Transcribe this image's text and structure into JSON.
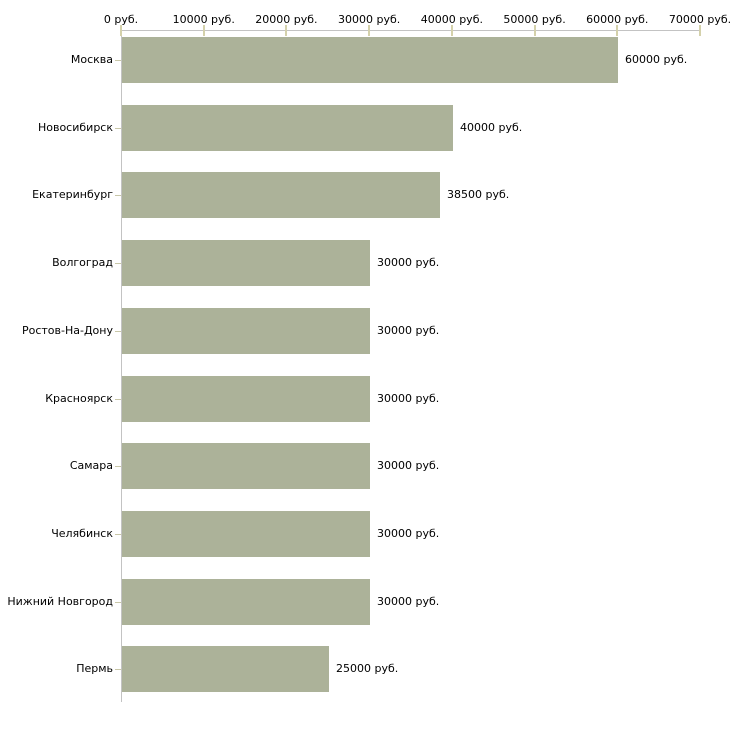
{
  "chart_data": {
    "type": "bar",
    "orientation": "horizontal",
    "title": "",
    "xlabel": "",
    "ylabel": "",
    "grid": false,
    "legend": false,
    "categories": [
      "Москва",
      "Новосибирск",
      "Екатеринбург",
      "Волгоград",
      "Ростов-На-Дону",
      "Красноярск",
      "Самара",
      "Челябинск",
      "Нижний Новгород",
      "Пермь"
    ],
    "values": [
      60000,
      40000,
      38500,
      30000,
      30000,
      30000,
      30000,
      30000,
      30000,
      25000
    ],
    "value_labels": [
      "60000 руб.",
      "40000 руб.",
      "38500 руб.",
      "30000 руб.",
      "30000 руб.",
      "30000 руб.",
      "30000 руб.",
      "30000 руб.",
      "30000 руб.",
      "25000 руб."
    ],
    "x_axis": {
      "position": "top",
      "min": 0,
      "max": 70000,
      "ticks": [
        0,
        10000,
        20000,
        30000,
        40000,
        50000,
        60000,
        70000
      ],
      "tick_labels": [
        "0 руб.",
        "10000 руб.",
        "20000 руб.",
        "30000 руб.",
        "40000 руб.",
        "50000 руб.",
        "60000 руб.",
        "70000 руб."
      ]
    },
    "colors": {
      "bar": "#acb299",
      "axis_line": "#c3c3c3",
      "x_tick": "#d4d1ab",
      "y_tick": "#c9c7a8",
      "text": "#000000",
      "background": "#ffffff"
    }
  }
}
